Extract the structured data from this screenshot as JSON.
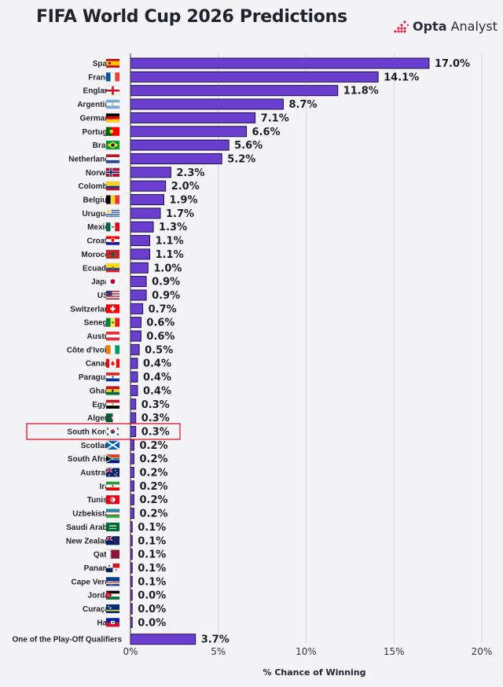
{
  "header": {
    "title": "FIFA World Cup 2026 Predictions",
    "brand_bold": "Opta",
    "brand_rest": " Analyst"
  },
  "colors": {
    "bar": "#6a3fd0",
    "bar_outline": "#1d1148",
    "highlight": "#e0243f",
    "grid": "#d6d6dc"
  },
  "chart_data": {
    "type": "bar",
    "orientation": "horizontal",
    "xlabel": "% Chance of Winning",
    "xlim": [
      0,
      20
    ],
    "xticks": [
      0,
      5,
      10,
      15,
      20
    ],
    "tick_suffix": "%",
    "value_suffix": "%",
    "grid": true,
    "highlighted": "South Korea",
    "categories": [
      "Spain",
      "France",
      "England",
      "Argentina",
      "Germany",
      "Portugal",
      "Brazil",
      "Netherlands",
      "Norway",
      "Colombia",
      "Belgium",
      "Uruguay",
      "Mexico",
      "Croatia",
      "Morocco",
      "Ecuador",
      "Japan",
      "USA",
      "Switzerland",
      "Senegal",
      "Austria",
      "Côte d'Ivoire",
      "Canada",
      "Paraguay",
      "Ghana",
      "Egypt",
      "Algeria",
      "South Korea",
      "Scotland",
      "South Africa",
      "Australia",
      "Iran",
      "Tunisia",
      "Uzbekistan",
      "Saudi Arabia",
      "New Zealand",
      "Qatar",
      "Panama",
      "Cape Verde",
      "Jordan",
      "Curaçao",
      "Haiti",
      "One of the Play-Off Qualifiers"
    ],
    "values": [
      17.0,
      14.1,
      11.8,
      8.7,
      7.1,
      6.6,
      5.6,
      5.2,
      2.3,
      2.0,
      1.9,
      1.7,
      1.3,
      1.1,
      1.1,
      1.0,
      0.9,
      0.9,
      0.7,
      0.6,
      0.6,
      0.5,
      0.4,
      0.4,
      0.4,
      0.3,
      0.3,
      0.3,
      0.2,
      0.2,
      0.2,
      0.2,
      0.2,
      0.2,
      0.1,
      0.1,
      0.1,
      0.1,
      0.1,
      0.0,
      0.0,
      0.0,
      3.7
    ],
    "flags": [
      "spain-flag-icon",
      "france-flag-icon",
      "england-flag-icon",
      "argentina-flag-icon",
      "germany-flag-icon",
      "portugal-flag-icon",
      "brazil-flag-icon",
      "netherlands-flag-icon",
      "norway-flag-icon",
      "colombia-flag-icon",
      "belgium-flag-icon",
      "uruguay-flag-icon",
      "mexico-flag-icon",
      "croatia-flag-icon",
      "morocco-flag-icon",
      "ecuador-flag-icon",
      "japan-flag-icon",
      "usa-flag-icon",
      "switzerland-flag-icon",
      "senegal-flag-icon",
      "austria-flag-icon",
      "cote-divoire-flag-icon",
      "canada-flag-icon",
      "paraguay-flag-icon",
      "ghana-flag-icon",
      "egypt-flag-icon",
      "algeria-flag-icon",
      "south-korea-flag-icon",
      "scotland-flag-icon",
      "south-africa-flag-icon",
      "australia-flag-icon",
      "iran-flag-icon",
      "tunisia-flag-icon",
      "uzbekistan-flag-icon",
      "saudi-arabia-flag-icon",
      "new-zealand-flag-icon",
      "qatar-flag-icon",
      "panama-flag-icon",
      "cape-verde-flag-icon",
      "jordan-flag-icon",
      "curacao-flag-icon",
      "haiti-flag-icon",
      ""
    ]
  }
}
